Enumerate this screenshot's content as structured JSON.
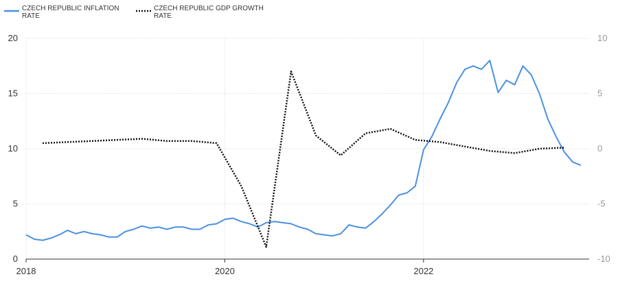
{
  "chart_data": {
    "type": "line",
    "legend_position": "top-left",
    "grid": true,
    "series": [
      {
        "name": [
          "CZECH REPUBLIC INFLATION",
          "RATE"
        ],
        "axis": "left",
        "color": "#4a90e2",
        "style": "solid",
        "points": [
          [
            "2018-01",
            2.2
          ],
          [
            "2018-02",
            1.8
          ],
          [
            "2018-03",
            1.7
          ],
          [
            "2018-04",
            1.9
          ],
          [
            "2018-05",
            2.2
          ],
          [
            "2018-06",
            2.6
          ],
          [
            "2018-07",
            2.3
          ],
          [
            "2018-08",
            2.5
          ],
          [
            "2018-09",
            2.3
          ],
          [
            "2018-10",
            2.2
          ],
          [
            "2018-11",
            2.0
          ],
          [
            "2018-12",
            2.0
          ],
          [
            "2019-01",
            2.5
          ],
          [
            "2019-02",
            2.7
          ],
          [
            "2019-03",
            3.0
          ],
          [
            "2019-04",
            2.8
          ],
          [
            "2019-05",
            2.9
          ],
          [
            "2019-06",
            2.7
          ],
          [
            "2019-07",
            2.9
          ],
          [
            "2019-08",
            2.9
          ],
          [
            "2019-09",
            2.7
          ],
          [
            "2019-10",
            2.7
          ],
          [
            "2019-11",
            3.1
          ],
          [
            "2019-12",
            3.2
          ],
          [
            "2020-01",
            3.6
          ],
          [
            "2020-02",
            3.7
          ],
          [
            "2020-03",
            3.4
          ],
          [
            "2020-04",
            3.2
          ],
          [
            "2020-05",
            2.9
          ],
          [
            "2020-06",
            3.3
          ],
          [
            "2020-07",
            3.4
          ],
          [
            "2020-08",
            3.3
          ],
          [
            "2020-09",
            3.2
          ],
          [
            "2020-10",
            2.9
          ],
          [
            "2020-11",
            2.7
          ],
          [
            "2020-12",
            2.3
          ],
          [
            "2021-01",
            2.2
          ],
          [
            "2021-02",
            2.1
          ],
          [
            "2021-03",
            2.3
          ],
          [
            "2021-04",
            3.1
          ],
          [
            "2021-05",
            2.9
          ],
          [
            "2021-06",
            2.8
          ],
          [
            "2021-07",
            3.4
          ],
          [
            "2021-08",
            4.1
          ],
          [
            "2021-09",
            4.9
          ],
          [
            "2021-10",
            5.8
          ],
          [
            "2021-11",
            6.0
          ],
          [
            "2021-12",
            6.6
          ],
          [
            "2022-01",
            9.9
          ],
          [
            "2022-02",
            11.1
          ],
          [
            "2022-03",
            12.7
          ],
          [
            "2022-04",
            14.2
          ],
          [
            "2022-05",
            16.0
          ],
          [
            "2022-06",
            17.2
          ],
          [
            "2022-07",
            17.5
          ],
          [
            "2022-08",
            17.2
          ],
          [
            "2022-09",
            18.0
          ],
          [
            "2022-10",
            15.1
          ],
          [
            "2022-11",
            16.2
          ],
          [
            "2022-12",
            15.8
          ],
          [
            "2023-01",
            17.5
          ],
          [
            "2023-02",
            16.7
          ],
          [
            "2023-03",
            15.0
          ],
          [
            "2023-04",
            12.7
          ],
          [
            "2023-05",
            11.1
          ],
          [
            "2023-06",
            9.7
          ],
          [
            "2023-07",
            8.8
          ],
          [
            "2023-08",
            8.5
          ]
        ]
      },
      {
        "name": [
          "CZECH REPUBLIC GDP GROWTH",
          "RATE"
        ],
        "axis": "right",
        "color": "#111111",
        "style": "dotted",
        "points": [
          [
            "2018-03",
            0.5
          ],
          [
            "2018-06",
            0.6
          ],
          [
            "2018-09",
            0.7
          ],
          [
            "2018-12",
            0.8
          ],
          [
            "2019-03",
            0.9
          ],
          [
            "2019-06",
            0.7
          ],
          [
            "2019-09",
            0.7
          ],
          [
            "2019-12",
            0.5
          ],
          [
            "2020-03",
            -3.4
          ],
          [
            "2020-06",
            -8.9
          ],
          [
            "2020-09",
            7.0
          ],
          [
            "2020-12",
            1.2
          ],
          [
            "2021-03",
            -0.6
          ],
          [
            "2021-06",
            1.4
          ],
          [
            "2021-09",
            1.8
          ],
          [
            "2021-12",
            0.8
          ],
          [
            "2022-03",
            0.6
          ],
          [
            "2022-06",
            0.2
          ],
          [
            "2022-09",
            -0.2
          ],
          [
            "2022-12",
            -0.4
          ],
          [
            "2023-03",
            0.0
          ],
          [
            "2023-06",
            0.1
          ]
        ]
      }
    ],
    "left_axis": {
      "ylim": [
        0,
        20
      ],
      "ticks": [
        "0",
        "5",
        "10",
        "15",
        "20"
      ]
    },
    "right_axis": {
      "ylim": [
        -10,
        10
      ],
      "ticks": [
        "-10",
        "-5",
        "0",
        "5",
        "10"
      ]
    },
    "x_axis": {
      "xlim": [
        "2018-01",
        "2023-09"
      ],
      "ticks": [
        {
          "date": "2018-01",
          "label": "2018"
        },
        {
          "date": "2020-01",
          "label": "2020"
        },
        {
          "date": "2022-01",
          "label": "2022"
        }
      ]
    }
  }
}
